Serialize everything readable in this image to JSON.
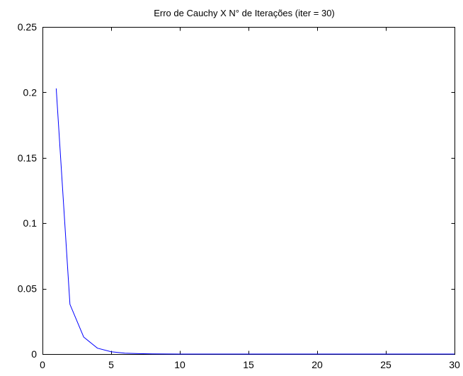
{
  "chart_data": {
    "type": "line",
    "title": "Erro de Cauchy X N° de Iterações (iter = 30)",
    "xlabel": "",
    "ylabel": "",
    "xlim": [
      0,
      30
    ],
    "ylim": [
      0,
      0.25
    ],
    "xticks": [
      0,
      5,
      10,
      15,
      20,
      25,
      30
    ],
    "yticks": [
      0,
      0.05,
      0.1,
      0.15,
      0.2,
      0.25
    ],
    "xtick_labels": [
      "0",
      "5",
      "10",
      "15",
      "20",
      "25",
      "30"
    ],
    "ytick_labels": [
      "0",
      "0.05",
      "0.1",
      "0.15",
      "0.2",
      "0.25"
    ],
    "grid": false,
    "series": [
      {
        "color": "#0000ff",
        "x": [
          1,
          2,
          3,
          4,
          5,
          6,
          7,
          8,
          9,
          10,
          11,
          12,
          13,
          14,
          15,
          16,
          17,
          18,
          19,
          20,
          21,
          22,
          23,
          24,
          25,
          26,
          27,
          28,
          29,
          30
        ],
        "y": [
          0.203,
          0.038,
          0.013,
          0.0045,
          0.0018,
          0.0007,
          0.0003,
          0.0001,
          5e-05,
          2e-05,
          1e-05,
          0,
          0,
          0,
          0,
          0,
          0,
          0,
          0,
          0,
          0,
          0,
          0,
          0,
          0,
          0,
          0,
          0,
          0,
          0
        ]
      }
    ]
  }
}
